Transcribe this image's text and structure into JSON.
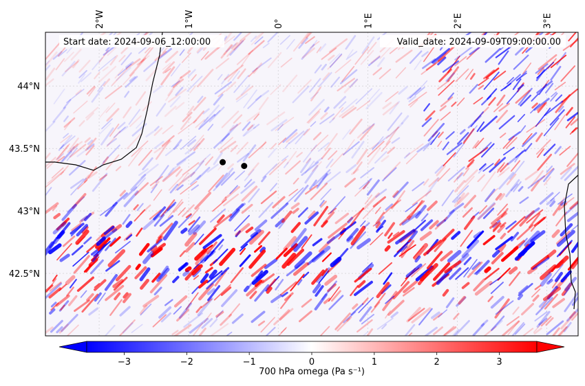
{
  "header": {
    "start_date": "Start date: 2024-09-06_12:00:00",
    "valid_date": "Valid_date: 2024-09-09T09:00:00.00"
  },
  "map": {
    "lon_ticks": [
      {
        "value": -2,
        "label": "2°W"
      },
      {
        "value": -1,
        "label": "1°W"
      },
      {
        "value": 0,
        "label": "0°"
      },
      {
        "value": 1,
        "label": "1°E"
      },
      {
        "value": 2,
        "label": "2°E"
      },
      {
        "value": 3,
        "label": "3°E"
      }
    ],
    "lat_ticks": [
      {
        "value": 44.0,
        "label": "44°N"
      },
      {
        "value": 43.5,
        "label": "43.5°N"
      },
      {
        "value": 43.0,
        "label": "43°N"
      },
      {
        "value": 42.5,
        "label": "42.5°N"
      }
    ],
    "extent": {
      "lon_min": -2.6,
      "lon_max": 3.35,
      "lat_min": 42.0,
      "lat_max": 44.43
    },
    "markers": [
      {
        "lon": -0.62,
        "lat": 43.39
      },
      {
        "lon": -0.38,
        "lat": 43.36
      }
    ],
    "colors": {
      "negative": "#0000ff",
      "positive": "#ff0000",
      "neutral": "#ffffff",
      "coast": "#000000"
    }
  },
  "colorbar": {
    "label": "700 hPa omega (Pa s⁻¹)",
    "range": [
      -3.6,
      3.6
    ],
    "ticks": [
      {
        "value": -3,
        "label": "−3"
      },
      {
        "value": -2,
        "label": "−2"
      },
      {
        "value": -1,
        "label": "−1"
      },
      {
        "value": 0,
        "label": "0"
      },
      {
        "value": 1,
        "label": "1"
      },
      {
        "value": 2,
        "label": "2"
      },
      {
        "value": 3,
        "label": "3"
      }
    ]
  }
}
